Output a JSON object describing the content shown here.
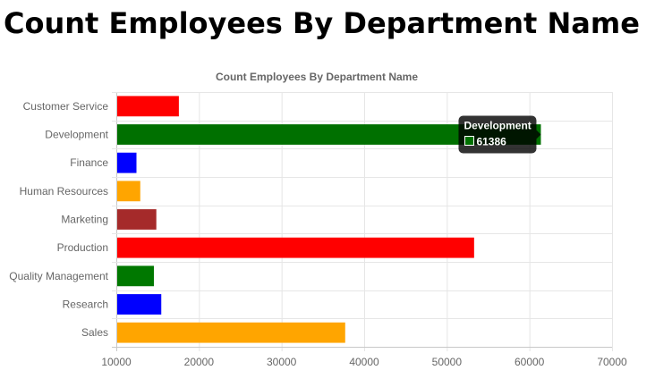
{
  "page": {
    "heading": "Count Employees By Department Name"
  },
  "chart_data": {
    "type": "bar",
    "orientation": "horizontal",
    "title": "Count Employees By Department Name",
    "xlabel": "",
    "ylabel": "",
    "categories": [
      "Customer Service",
      "Development",
      "Finance",
      "Human Resources",
      "Marketing",
      "Production",
      "Quality Management",
      "Research",
      "Sales"
    ],
    "values": [
      17569,
      61386,
      12437,
      12898,
      14842,
      53304,
      14546,
      15441,
      37701
    ],
    "colors": [
      "#ff0000",
      "#007000",
      "#0000ff",
      "#ffa500",
      "#a52a2a",
      "#ff0000",
      "#007800",
      "#0000ff",
      "#ffa500"
    ],
    "xlim": [
      10000,
      70000
    ],
    "xticks": [
      10000,
      20000,
      30000,
      40000,
      50000,
      60000,
      70000
    ],
    "grid": true,
    "legend": "none",
    "tooltip": {
      "category": "Development",
      "value": "61386"
    }
  }
}
